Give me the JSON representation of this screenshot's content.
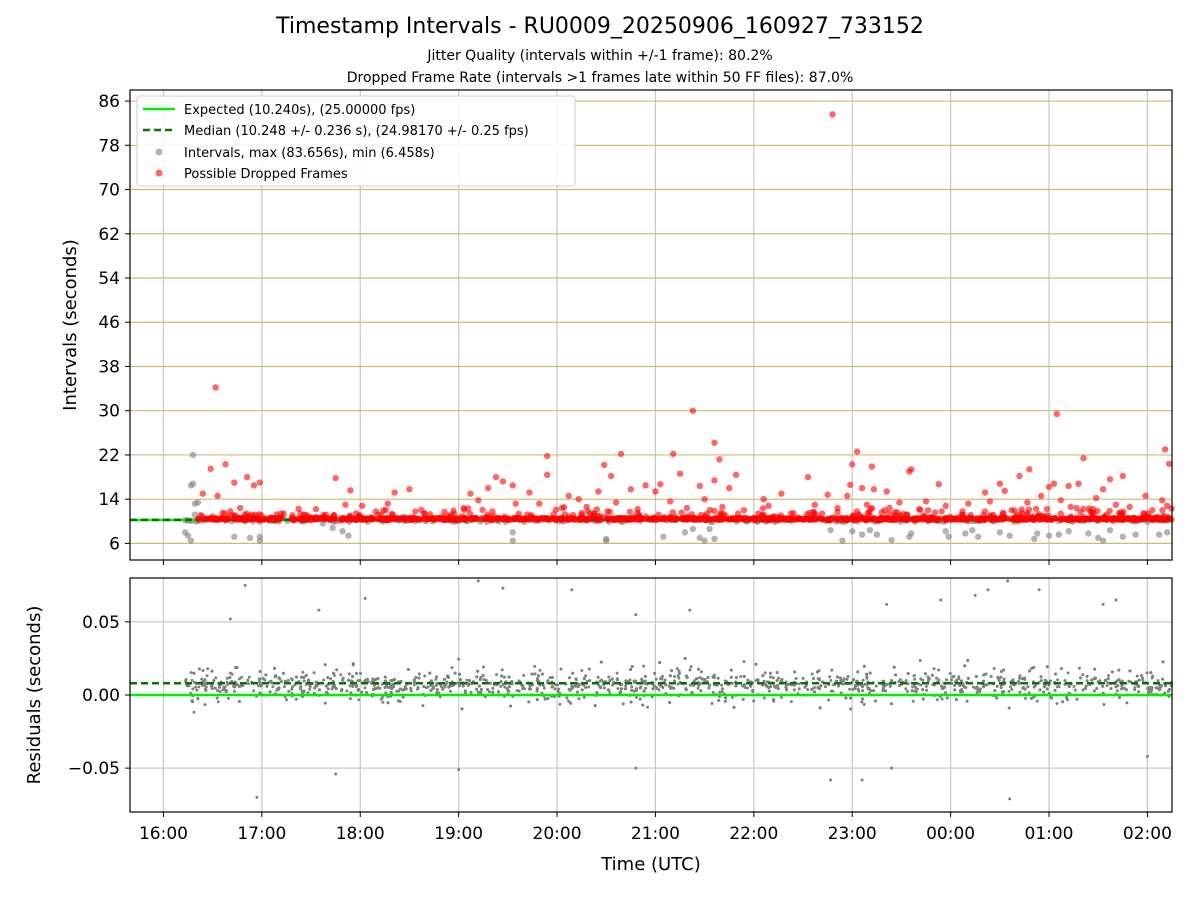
{
  "figure": {
    "title": "Timestamp Intervals - RU0009_20250906_160927_733152",
    "subtitle1": "Jitter Quality (intervals within +/-1 frame): 80.2%",
    "subtitle2": "Dropped Frame Rate (intervals >1 frames late within 50 FF files): 87.0%"
  },
  "colors": {
    "expected": "#00ee00",
    "median": "#007700",
    "intervals": "#808080",
    "dropped": "#ff0000",
    "hgrid": "#d4b96a",
    "vgrid": "#c8c8c8"
  },
  "chart_data": [
    {
      "type": "scatter",
      "panel": "top",
      "ylabel": "Intervals (seconds)",
      "xlabel": "",
      "ylim": [
        3,
        88
      ],
      "x_range_hours": [
        15.66,
        26.25
      ],
      "yticks": [
        6,
        14,
        22,
        30,
        38,
        46,
        54,
        62,
        70,
        78,
        86
      ],
      "grid": true,
      "legend_position": "top-left",
      "legend": [
        {
          "label": "Expected (10.240s), (25.00000 fps)",
          "style": "solid-line",
          "color": "#00ee00"
        },
        {
          "label": "Median (10.248 +/- 0.236 s), (24.98170 +/- 0.25 fps)",
          "style": "dashed-line",
          "color": "#007700"
        },
        {
          "label": "Intervals, max (83.656s), min (6.458s)",
          "style": "marker",
          "color": "#808080"
        },
        {
          "label": "Possible Dropped Frames",
          "style": "marker",
          "color": "#ff0000"
        }
      ],
      "expected_value": 10.24,
      "median_value": 10.248,
      "series": [
        {
          "name": "Intervals, max (83.656s), min (6.458s)",
          "points": [
            [
              16.22,
              10.2
            ],
            [
              16.25,
              10.2
            ],
            [
              16.28,
              16.5
            ],
            [
              16.3,
              16.8
            ],
            [
              16.3,
              22.0
            ],
            [
              16.32,
              11.2
            ],
            [
              16.32,
              13.2
            ],
            [
              16.35,
              13.4
            ],
            [
              16.22,
              8.0
            ],
            [
              16.28,
              6.5
            ],
            [
              16.25,
              7.4
            ],
            [
              16.72,
              7.2
            ],
            [
              16.88,
              7.0
            ],
            [
              16.98,
              6.5
            ],
            [
              16.98,
              7.2
            ],
            [
              17.72,
              8.8
            ],
            [
              17.62,
              9.6
            ],
            [
              17.82,
              8.2
            ],
            [
              17.88,
              7.4
            ],
            [
              19.55,
              6.5
            ],
            [
              19.55,
              8.0
            ],
            [
              20.5,
              6.5
            ],
            [
              20.5,
              6.8
            ],
            [
              21.08,
              7.2
            ],
            [
              21.3,
              8.0
            ],
            [
              21.38,
              8.6
            ],
            [
              21.45,
              7.0
            ],
            [
              21.5,
              6.5
            ],
            [
              21.55,
              8.6
            ],
            [
              21.6,
              6.8
            ],
            [
              22.78,
              8.4
            ],
            [
              22.9,
              6.5
            ],
            [
              23.0,
              8.2
            ],
            [
              23.1,
              7.6
            ],
            [
              23.18,
              8.4
            ],
            [
              23.25,
              7.6
            ],
            [
              23.4,
              6.6
            ],
            [
              23.58,
              7.2
            ],
            [
              23.6,
              7.8
            ],
            [
              23.95,
              8.2
            ],
            [
              23.98,
              7.2
            ],
            [
              24.15,
              7.8
            ],
            [
              24.22,
              8.4
            ],
            [
              24.28,
              7.2
            ],
            [
              24.5,
              8.0
            ],
            [
              24.6,
              7.4
            ],
            [
              24.85,
              6.8
            ],
            [
              24.88,
              7.8
            ],
            [
              25.0,
              7.4
            ],
            [
              25.1,
              7.6
            ],
            [
              25.2,
              8.2
            ],
            [
              25.4,
              7.8
            ],
            [
              25.5,
              7.0
            ],
            [
              25.55,
              6.5
            ],
            [
              25.62,
              8.4
            ],
            [
              25.75,
              7.2
            ],
            [
              25.88,
              7.6
            ],
            [
              25.85,
              10.2
            ],
            [
              25.9,
              10.0
            ],
            [
              26.12,
              7.6
            ],
            [
              26.2,
              8.0
            ],
            [
              24.3,
              10.2
            ],
            [
              24.35,
              10.2
            ],
            [
              23.9,
              10.2
            ],
            [
              18.9,
              10.6
            ]
          ]
        },
        {
          "name": "Possible Dropped Frames",
          "dense_band": [
            {
              "from": 16.35,
              "to": 17.2
            },
            {
              "from": 17.3,
              "to": 26.25
            }
          ],
          "dense_band_y": [
            10.25,
            10.6
          ],
          "points": [
            [
              22.8,
              83.6
            ],
            [
              16.53,
              34.2
            ],
            [
              21.38,
              30.0
            ],
            [
              25.08,
              29.4
            ],
            [
              21.6,
              24.2
            ],
            [
              26.18,
              23.0
            ],
            [
              20.65,
              22.2
            ],
            [
              23.05,
              22.6
            ],
            [
              19.9,
              21.8
            ],
            [
              21.18,
              22.2
            ],
            [
              21.65,
              21.2
            ],
            [
              23.2,
              19.9
            ],
            [
              23.58,
              19.0
            ],
            [
              16.48,
              19.5
            ],
            [
              16.63,
              20.3
            ],
            [
              16.85,
              18.0
            ],
            [
              16.72,
              17.0
            ],
            [
              16.92,
              16.5
            ],
            [
              16.98,
              17.0
            ],
            [
              17.75,
              17.8
            ],
            [
              17.9,
              15.6
            ],
            [
              18.35,
              15.2
            ],
            [
              18.5,
              15.8
            ],
            [
              19.12,
              15.0
            ],
            [
              19.3,
              16.0
            ],
            [
              19.38,
              18.0
            ],
            [
              19.45,
              17.2
            ],
            [
              19.55,
              16.5
            ],
            [
              19.72,
              15.2
            ],
            [
              19.9,
              18.4
            ],
            [
              20.12,
              14.6
            ],
            [
              20.42,
              15.4
            ],
            [
              20.48,
              20.2
            ],
            [
              20.55,
              18.2
            ],
            [
              20.75,
              15.8
            ],
            [
              20.9,
              16.5
            ],
            [
              21.0,
              15.4
            ],
            [
              21.05,
              16.7
            ],
            [
              21.25,
              18.6
            ],
            [
              21.45,
              16.4
            ],
            [
              21.6,
              17.4
            ],
            [
              21.75,
              16.0
            ],
            [
              21.82,
              18.4
            ],
            [
              22.1,
              14.0
            ],
            [
              22.28,
              15.0
            ],
            [
              22.55,
              18.0
            ],
            [
              22.75,
              14.8
            ],
            [
              22.98,
              16.6
            ],
            [
              23.0,
              20.3
            ],
            [
              23.1,
              16.0
            ],
            [
              23.22,
              15.8
            ],
            [
              23.35,
              15.4
            ],
            [
              23.6,
              19.4
            ],
            [
              23.75,
              13.6
            ],
            [
              23.88,
              16.7
            ],
            [
              24.18,
              13.2
            ],
            [
              24.35,
              15.2
            ],
            [
              24.5,
              16.8
            ],
            [
              24.55,
              15.5
            ],
            [
              24.7,
              18.2
            ],
            [
              24.8,
              19.4
            ],
            [
              24.92,
              14.6
            ],
            [
              25.0,
              16.2
            ],
            [
              25.05,
              16.8
            ],
            [
              25.2,
              16.4
            ],
            [
              25.3,
              16.8
            ],
            [
              25.35,
              21.4
            ],
            [
              25.45,
              12.2
            ],
            [
              25.55,
              15.8
            ],
            [
              25.62,
              17.6
            ],
            [
              25.75,
              18.2
            ],
            [
              25.98,
              14.6
            ],
            [
              26.15,
              13.8
            ],
            [
              26.22,
              20.4
            ],
            [
              16.4,
              15.0
            ],
            [
              16.55,
              14.6
            ],
            [
              16.6,
              11.5
            ],
            [
              16.68,
              11.8
            ],
            [
              16.78,
              12.4
            ],
            [
              16.9,
              11.2
            ],
            [
              17.55,
              12.2
            ],
            [
              17.65,
              11.2
            ],
            [
              17.85,
              13.0
            ],
            [
              18.02,
              12.8
            ],
            [
              18.18,
              11.2
            ],
            [
              18.28,
              13.2
            ],
            [
              18.65,
              11.4
            ],
            [
              19.05,
              12.4
            ],
            [
              19.2,
              13.8
            ],
            [
              19.58,
              13.2
            ],
            [
              19.82,
              13.2
            ],
            [
              20.05,
              12.4
            ],
            [
              20.22,
              14.0
            ],
            [
              20.3,
              12.6
            ],
            [
              20.6,
              13.4
            ],
            [
              20.82,
              12.2
            ],
            [
              21.15,
              13.6
            ],
            [
              21.32,
              12.4
            ],
            [
              21.5,
              14.0
            ],
            [
              21.68,
              12.6
            ],
            [
              21.9,
              12.0
            ],
            [
              22.15,
              12.8
            ],
            [
              22.38,
              11.4
            ],
            [
              22.62,
              13.0
            ],
            [
              22.85,
              12.4
            ],
            [
              22.95,
              14.6
            ],
            [
              23.15,
              13.0
            ],
            [
              23.3,
              11.6
            ],
            [
              23.48,
              13.4
            ],
            [
              23.68,
              12.2
            ],
            [
              23.95,
              12.8
            ],
            [
              24.12,
              11.8
            ],
            [
              24.4,
              13.6
            ],
            [
              24.62,
              12.0
            ],
            [
              24.78,
              13.4
            ],
            [
              24.98,
              12.2
            ],
            [
              25.12,
              13.8
            ],
            [
              25.28,
              12.4
            ],
            [
              25.48,
              14.2
            ],
            [
              25.68,
              13.0
            ],
            [
              25.82,
              12.6
            ],
            [
              26.05,
              12.0
            ],
            [
              26.2,
              12.8
            ]
          ]
        }
      ]
    },
    {
      "type": "scatter",
      "panel": "bottom",
      "ylabel": "Residuals (seconds)",
      "xlabel": "Time (UTC)",
      "ylim": [
        -0.08,
        0.08
      ],
      "yticks": [
        "−0.05",
        "0.00",
        "0.05"
      ],
      "ytick_values": [
        -0.05,
        0.0,
        0.05
      ],
      "xticks": [
        "16:00",
        "17:00",
        "18:00",
        "19:00",
        "20:00",
        "21:00",
        "22:00",
        "23:00",
        "00:00",
        "01:00",
        "02:00"
      ],
      "xtick_hours": [
        16,
        17,
        18,
        19,
        20,
        21,
        22,
        23,
        24,
        25,
        26
      ],
      "grid": true,
      "expected_residual": 0.0,
      "median_residual": 0.008,
      "series": [
        {
          "name": "Residuals",
          "scatter_extent": {
            "x_from": 16.2,
            "x_to": 26.25,
            "center": 0.007,
            "spread": 0.025
          },
          "points": [
            [
              16.95,
              -0.07
            ],
            [
              16.83,
              0.075
            ],
            [
              17.75,
              -0.054
            ],
            [
              18.05,
              0.066
            ],
            [
              19.0,
              -0.051
            ],
            [
              19.2,
              0.078
            ],
            [
              19.45,
              0.073
            ],
            [
              20.15,
              0.072
            ],
            [
              20.8,
              -0.05
            ],
            [
              20.8,
              0.055
            ],
            [
              21.35,
              0.058
            ],
            [
              22.78,
              -0.058
            ],
            [
              23.1,
              -0.058
            ],
            [
              23.35,
              0.062
            ],
            [
              23.4,
              -0.05
            ],
            [
              23.9,
              0.065
            ],
            [
              24.25,
              0.068
            ],
            [
              24.38,
              0.072
            ],
            [
              24.6,
              -0.071
            ],
            [
              24.58,
              0.078
            ],
            [
              24.9,
              0.072
            ],
            [
              25.55,
              0.062
            ],
            [
              25.68,
              0.065
            ],
            [
              26.0,
              -0.042
            ],
            [
              16.68,
              0.052
            ],
            [
              17.58,
              0.058
            ]
          ]
        }
      ]
    }
  ]
}
